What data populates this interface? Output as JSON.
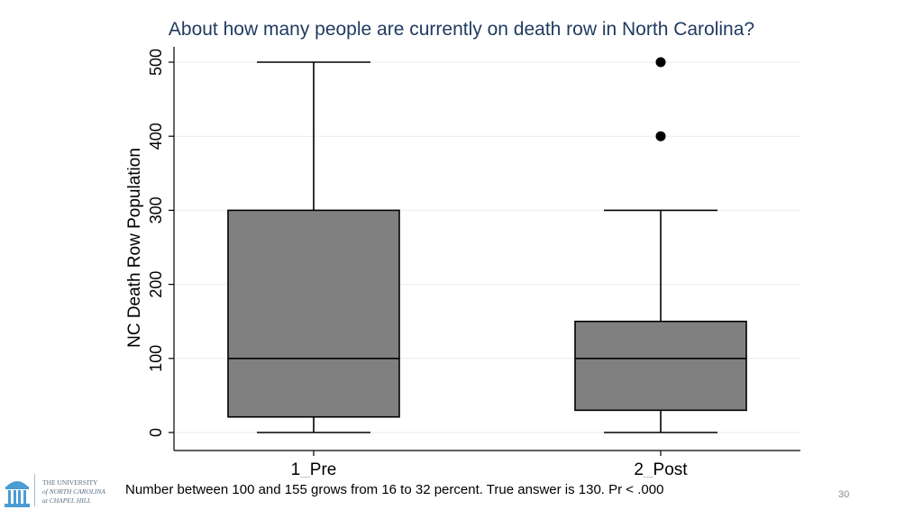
{
  "slide": {
    "footnote": "Number between 100 and 155 grows from 16 to 32 percent. True answer is 130. Pr < .000",
    "page_number": "30",
    "logo": {
      "icon": "old-well-icon",
      "line1": "THE UNIVERSITY",
      "line2": "of NORTH CAROLINA",
      "line3": "at CHAPEL HILL",
      "color": "#4b9cd3"
    }
  },
  "chart_data": {
    "type": "box",
    "title": "About how many people are currently on death row in North Carolina?",
    "ylabel": "NC Death Row Population",
    "xlabel": "",
    "ylim": [
      0,
      500
    ],
    "yticks": [
      0,
      100,
      200,
      300,
      400,
      500
    ],
    "grid": true,
    "categories": [
      "1_Pre",
      "2_Post"
    ],
    "boxes": [
      {
        "category": "1_Pre",
        "whisker_low": 0,
        "q1": 21,
        "median": 100,
        "q3": 300,
        "whisker_high": 500,
        "outliers": []
      },
      {
        "category": "2_Post",
        "whisker_low": 0,
        "q1": 30,
        "median": 100,
        "q3": 150,
        "whisker_high": 300,
        "outliers": [
          400,
          500
        ]
      }
    ],
    "box_color": "#808080",
    "title_color": "#1f3a5f"
  }
}
